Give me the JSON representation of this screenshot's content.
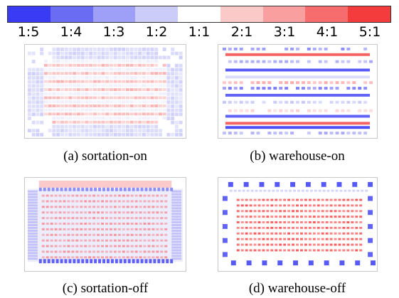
{
  "colorbar": {
    "colors": [
      "#3a3cf5",
      "#6b6cf4",
      "#9e9ff6",
      "#ccccfa",
      "#ffffff",
      "#fcc9c9",
      "#f99f9f",
      "#f76d6d",
      "#f43c3c"
    ],
    "ticks": [
      "1:5",
      "1:4",
      "1:3",
      "1:2",
      "1:1",
      "2:1",
      "3:1",
      "4:1",
      "5:1"
    ]
  },
  "panels": [
    {
      "id": "sortation-on",
      "caption": "(a)  sortation-on"
    },
    {
      "id": "warehouse-on",
      "caption": "(b)  warehouse-on"
    },
    {
      "id": "sortation-off",
      "caption": "(c)  sortation-off"
    },
    {
      "id": "warehouse-off",
      "caption": "(d)  warehouse-off"
    }
  ]
}
